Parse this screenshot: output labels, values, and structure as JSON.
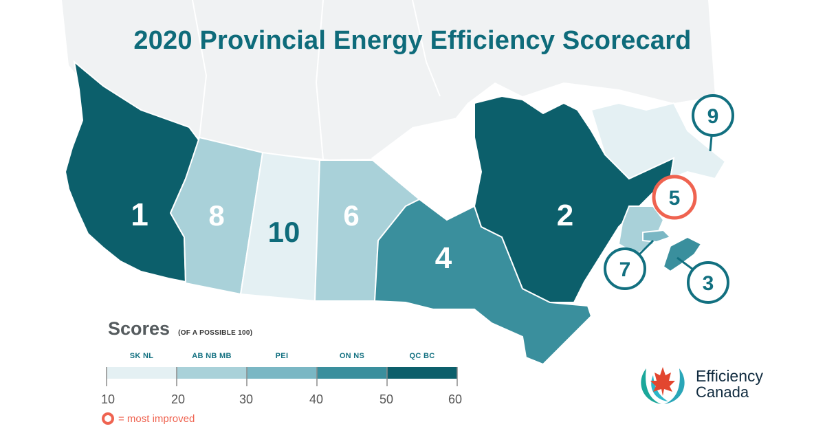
{
  "title": "2020 Provincial Energy Efficiency Scorecard",
  "regions": [
    {
      "id": "BC",
      "rank": "1",
      "color": "#0c5f6b"
    },
    {
      "id": "AB",
      "rank": "8",
      "color": "#a9d1d9"
    },
    {
      "id": "SK",
      "rank": "10",
      "color": "#e4f0f3"
    },
    {
      "id": "MB",
      "rank": "6",
      "color": "#a9d1d9"
    },
    {
      "id": "ON",
      "rank": "4",
      "color": "#3a8f9d"
    },
    {
      "id": "QC",
      "rank": "2",
      "color": "#0c5f6b"
    },
    {
      "id": "NL",
      "rank": "9",
      "color": "#e4f0f3"
    },
    {
      "id": "NB",
      "rank": "5",
      "color": "#a9d1d9",
      "most_improved": true
    },
    {
      "id": "PEI",
      "rank": "7",
      "color": "#7ab7c4"
    },
    {
      "id": "NS",
      "rank": "3",
      "color": "#3a8f9d"
    }
  ],
  "legend": {
    "title": "Scores",
    "subtitle": "(OF A POSSIBLE 100)",
    "bands": [
      {
        "label": "SK NL",
        "color": "#e4f0f3"
      },
      {
        "label": "AB NB MB",
        "color": "#a9d1d9"
      },
      {
        "label": "PEI",
        "color": "#7ab7c4"
      },
      {
        "label": "ON NS",
        "color": "#3a8f9d"
      },
      {
        "label": "QC BC",
        "color": "#0c5f6b"
      }
    ],
    "ticks": [
      "10",
      "20",
      "30",
      "40",
      "50",
      "60"
    ],
    "most_improved_label": "= most improved"
  },
  "logo": {
    "line1": "Efficiency",
    "line2": "Canada"
  },
  "colors": {
    "title": "#0e6b7a",
    "callout_ring": "#127080",
    "most_improved_ring": "#ef6350",
    "background_land": "#f1f3f4"
  }
}
